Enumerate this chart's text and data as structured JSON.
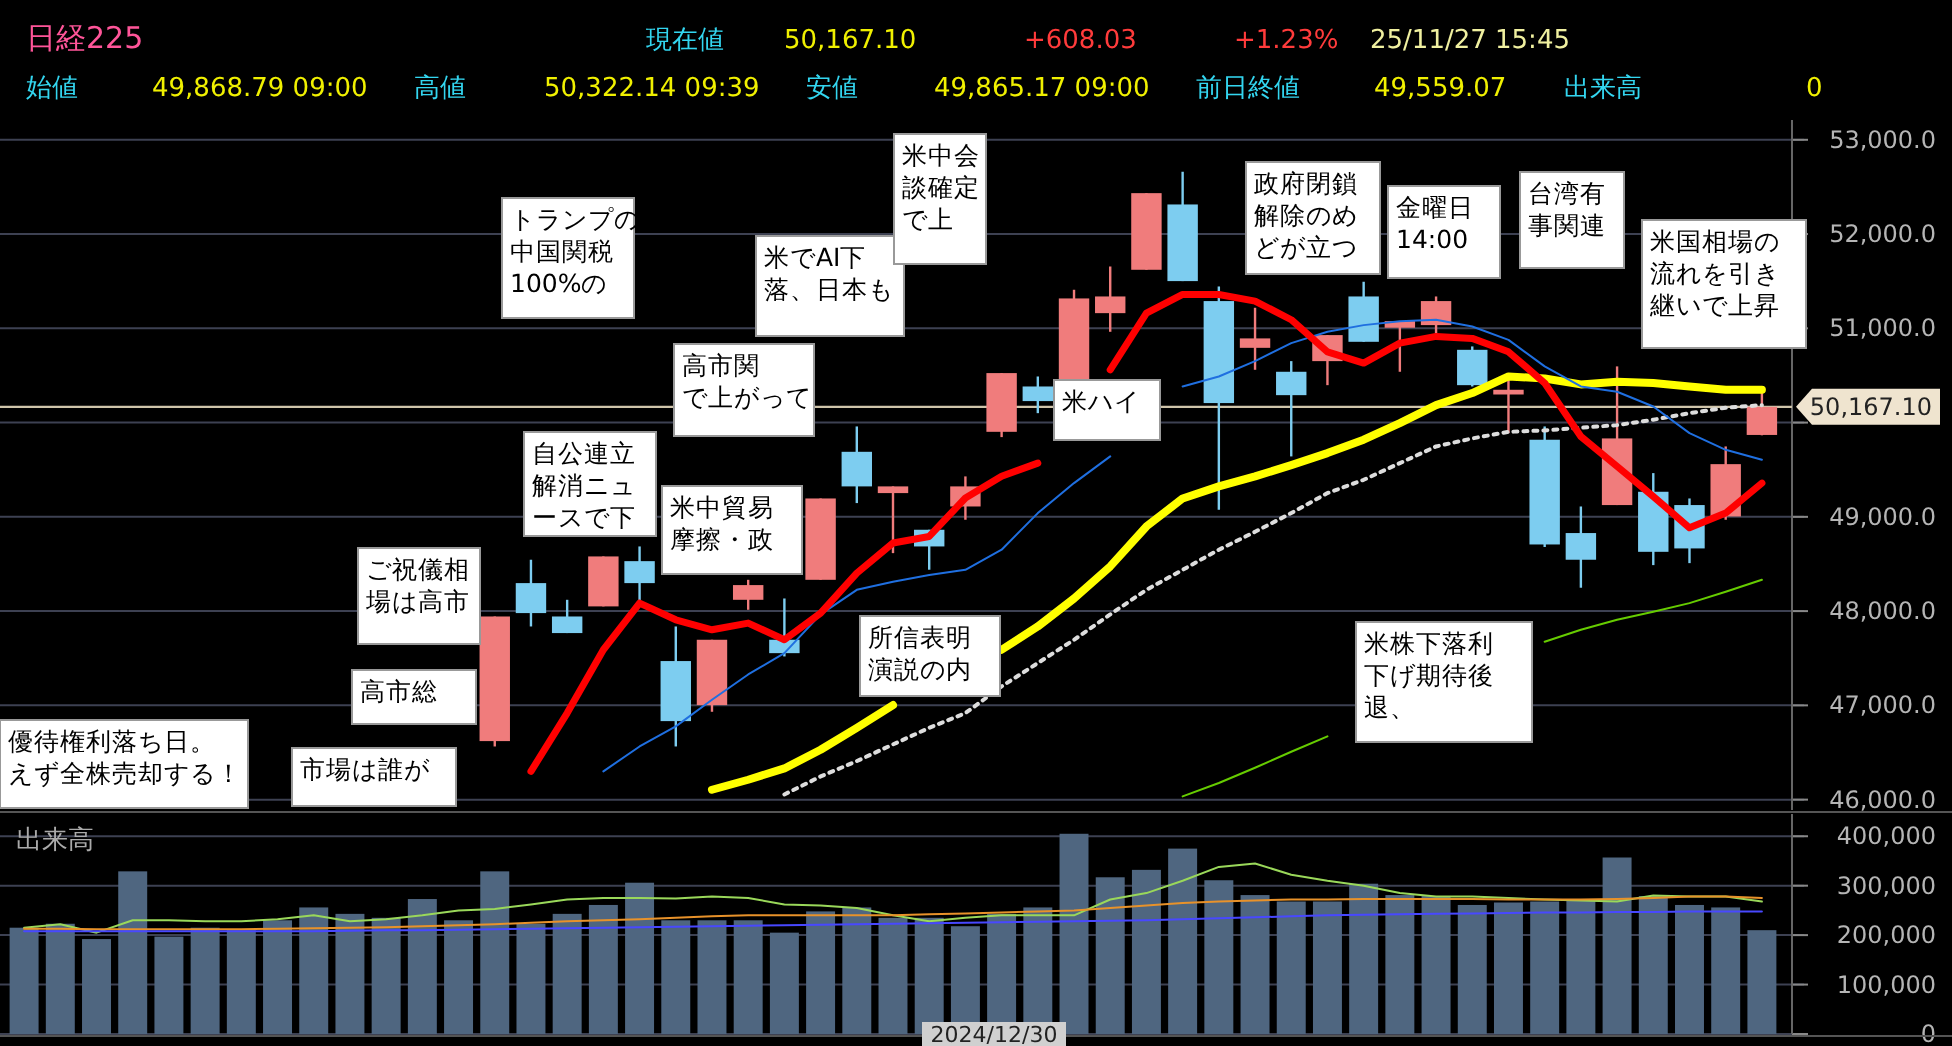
{
  "chart_data": [
    {
      "type": "candlestick",
      "title": "日経225",
      "categories": [
        null,
        null,
        null,
        null,
        null,
        null,
        null,
        null,
        null,
        null,
        null,
        null,
        null,
        null,
        null,
        null,
        null,
        null,
        null,
        null,
        null,
        null,
        null,
        null,
        null,
        null,
        null,
        null,
        null,
        null,
        null,
        null,
        null,
        null,
        null,
        null,
        null,
        null,
        null,
        null,
        null,
        null,
        null,
        null,
        null,
        null,
        null,
        null,
        null
      ],
      "ohlc": [
        null,
        null,
        null,
        null,
        null,
        null,
        null,
        null,
        null,
        null,
        null,
        null,
        null,
        [
          46621,
          47943,
          46564,
          47943
        ],
        [
          48297,
          48545,
          47837,
          47979
        ],
        [
          47943,
          48120,
          47767,
          47767
        ],
        [
          48050,
          48580,
          48050,
          48580
        ],
        [
          48530,
          48686,
          48085,
          48297
        ],
        [
          47470,
          47837,
          46564,
          46833
        ],
        [
          47003,
          47696,
          46932,
          47696
        ],
        [
          48120,
          48332,
          48014,
          48276
        ],
        [
          47696,
          48134,
          47519,
          47554
        ],
        [
          48332,
          49195,
          48332,
          49195
        ],
        [
          49690,
          49959,
          49146,
          49323
        ],
        [
          49252,
          49323,
          48615,
          49323
        ],
        [
          48863,
          48863,
          48439,
          48686
        ],
        [
          49110,
          49429,
          48969,
          49323
        ],
        [
          49902,
          50525,
          49846,
          50525
        ],
        [
          50383,
          50489,
          50100,
          50228
        ],
        [
          50454,
          51409,
          50454,
          51317
        ],
        [
          51161,
          51656,
          50963,
          51338
        ],
        [
          51621,
          52434,
          51621,
          52434
        ],
        [
          52314,
          52661,
          51501,
          51501
        ],
        [
          51289,
          51444,
          49075,
          50207
        ],
        [
          50793,
          51218,
          50560,
          50893
        ],
        [
          50539,
          50652,
          49641,
          50291
        ],
        [
          50652,
          50928,
          50397,
          50928
        ],
        [
          51338,
          51494,
          50857,
          50857
        ],
        [
          51006,
          51076,
          50539,
          51076
        ],
        [
          51034,
          51338,
          50949,
          51289
        ],
        [
          50772,
          50808,
          50383,
          50397
        ],
        [
          50298,
          50454,
          49888,
          50348
        ],
        [
          49818,
          49959,
          48680,
          48707
        ],
        [
          48828,
          49110,
          48248,
          48545
        ],
        [
          49125,
          50596,
          49125,
          49832
        ],
        [
          49266,
          49464,
          48488,
          48629
        ],
        [
          49125,
          49195,
          48509,
          48665
        ],
        [
          49004,
          49747,
          48969,
          49559.07
        ],
        [
          49868.79,
          50322.14,
          49865.17,
          50167.1
        ]
      ],
      "colors": [
        null,
        null,
        null,
        null,
        null,
        null,
        null,
        null,
        null,
        null,
        null,
        null,
        null,
        "#f07c7c",
        "#7dcdf0",
        "#7dcdf0",
        "#f07c7c",
        "#7dcdf0",
        "#7dcdf0",
        "#f07c7c",
        "#f07c7c",
        "#7dcdf0",
        "#f07c7c",
        "#7dcdf0",
        "#f07c7c",
        "#7dcdf0",
        "#f07c7c",
        "#f07c7c",
        "#7dcdf0",
        "#f07c7c",
        "#f07c7c",
        "#f07c7c",
        "#7dcdf0",
        "#7dcdf0",
        "#f07c7c",
        "#7dcdf0",
        "#f07c7c",
        "#7dcdf0",
        "#f07c7c",
        "#f07c7c",
        "#7dcdf0",
        "#f07c7c",
        "#7dcdf0",
        "#7dcdf0",
        "#f07c7c",
        "#7dcdf0",
        "#7dcdf0",
        "#f07c7c",
        "#f07c7c"
      ],
      "series": [
        {
          "type": "line",
          "color": "#ffff00",
          "line_style": "solid",
          "values": [
            null,
            null,
            null,
            null,
            null,
            null,
            null,
            null,
            null,
            null,
            null,
            null,
            null,
            null,
            null,
            null,
            null,
            null,
            null,
            46105,
            46211,
            46331,
            46529,
            46762,
            47003,
            null,
            null,
            47590,
            47837,
            48134,
            48474,
            48898,
            49195,
            49323,
            49429,
            49549,
            49676,
            49818,
            49995,
            50185,
            50313,
            50489,
            50468,
            50405,
            50433,
            50419,
            50383,
            50348,
            50348
          ]
        },
        {
          "type": "line",
          "color": "#dddddd",
          "line_style": "dotted",
          "values": [
            null,
            null,
            null,
            null,
            null,
            null,
            null,
            null,
            null,
            null,
            null,
            null,
            null,
            null,
            null,
            null,
            null,
            null,
            null,
            null,
            null,
            46055,
            46246,
            46409,
            46586,
            46762,
            46918,
            47201,
            47449,
            47696,
            47965,
            48226,
            48438,
            48651,
            48842,
            49040,
            49252,
            49393,
            49570,
            49747,
            49832,
            49902,
            49917,
            49945,
            49973,
            50030,
            50100,
            50157,
            50185
          ]
        },
        {
          "type": "line",
          "color": "#66cc00",
          "line_style": "solid",
          "values": [
            null,
            null,
            null,
            null,
            null,
            null,
            null,
            null,
            null,
            null,
            null,
            null,
            null,
            null,
            null,
            null,
            null,
            null,
            null,
            null,
            null,
            null,
            null,
            null,
            null,
            null,
            null,
            null,
            null,
            null,
            null,
            null,
            46034,
            46176,
            46338,
            46508,
            46671,
            null,
            null,
            null,
            null,
            null,
            47675,
            47802,
            47908,
            47993,
            48085,
            48205,
            48332
          ]
        },
        {
          "type": "line",
          "color": "#1f6fe0",
          "line_style": "solid",
          "values": [
            null,
            null,
            null,
            null,
            null,
            null,
            null,
            null,
            null,
            null,
            null,
            null,
            null,
            null,
            null,
            null,
            46300,
            46564,
            46777,
            47060,
            47328,
            47554,
            47965,
            48226,
            48311,
            48382,
            48438,
            48651,
            49040,
            49358,
            49641,
            null,
            50383,
            50489,
            50652,
            50843,
            50963,
            51034,
            51076,
            51091,
            51020,
            50878,
            50596,
            50383,
            50327,
            50171,
            49888,
            49711,
            49605
          ]
        },
        {
          "type": "line",
          "color": "#ff0000",
          "line_style": "solid",
          "values": [
            null,
            null,
            null,
            null,
            null,
            null,
            null,
            null,
            null,
            null,
            null,
            null,
            null,
            null,
            46300,
            46918,
            47590,
            48085,
            47908,
            47802,
            47873,
            47696,
            47979,
            48403,
            48722,
            48792,
            49200,
            49430,
            49570,
            null,
            50560,
            51161,
            51359,
            51359,
            51289,
            51091,
            50751,
            50631,
            50843,
            50914,
            50893,
            50751,
            50419,
            49853,
            49535,
            49216,
            48884,
            49040,
            49358
          ]
        }
      ],
      "ylim": [
        45890,
        53210
      ],
      "yticks": [
        {
          "value": 46000,
          "label": "46,000.0"
        },
        {
          "value": 47000,
          "label": "47,000.0"
        },
        {
          "value": 48000,
          "label": "48,000.0"
        },
        {
          "value": 49000,
          "label": "49,000.0"
        },
        {
          "value": 50000,
          "label": null
        },
        {
          "value": 51000,
          "label": "51,000.0"
        },
        {
          "value": 52000,
          "label": "52,000.0"
        },
        {
          "value": 53000,
          "label": "53,000.0"
        }
      ],
      "grid": "y",
      "ref_lines": [
        {
          "axis": "y",
          "value": 50167.1,
          "label": "50,167.10",
          "color": "#cfc4aa"
        }
      ],
      "annotations": [
        "現在値",
        "50,167.10",
        "+608.03",
        "+1.23%",
        "25/11/27 15:45",
        "始値",
        "49,868.79 09:00",
        "高値",
        "50,322.14 09:39",
        "安値",
        "49,865.17 09:00",
        "前日終値",
        "49,559.07",
        "出来高",
        "0",
        "優待権利落ち日。えず全株売却する！",
        "市場は誰が",
        "高市総",
        "ご祝儀相場は高市",
        "トランプの中国関税100%の",
        "自公連立解消ニュースで下",
        "高市関で上がって",
        "米でAI下落、日本も",
        "米中貿易摩擦・政",
        "米中会談確定で上",
        "所信表明演説の内",
        "米ハイ",
        "政府閉鎖解除のめどが立つ",
        "金曜日14:00",
        "台湾有事関連",
        "米国相場の流れを引き継いで上昇",
        "米株下落利下げ期待後退、"
      ]
    },
    {
      "type": "bar",
      "title": "出来高",
      "categories": [
        null,
        null,
        null,
        null,
        null,
        null,
        null,
        null,
        null,
        null,
        null,
        null,
        null,
        null,
        null,
        null,
        null,
        null,
        null,
        null,
        null,
        null,
        null,
        null,
        null,
        null,
        null,
        null,
        null,
        null,
        null,
        null,
        null,
        null,
        null,
        null,
        null,
        null,
        null,
        null,
        null,
        null,
        null,
        null,
        null,
        null,
        null,
        null,
        null
      ],
      "series": [
        {
          "type": "bar",
          "color": "#4f6680",
          "values": [
            215000,
            223000,
            192000,
            329000,
            197000,
            215000,
            210000,
            230000,
            256000,
            243000,
            235000,
            273000,
            230000,
            329000,
            223000,
            243000,
            261000,
            306000,
            230000,
            230000,
            230000,
            205000,
            248000,
            256000,
            235000,
            235000,
            218000,
            243000,
            256000,
            405000,
            317000,
            332000,
            375000,
            311000,
            281000,
            268000,
            268000,
            304000,
            281000,
            279000,
            261000,
            266000,
            268000,
            273000,
            357000,
            279000,
            261000,
            256000,
            210000
          ]
        },
        {
          "type": "line",
          "color": "#9ad85a",
          "values": [
            215000,
            222000,
            205000,
            230000,
            230000,
            228000,
            228000,
            232000,
            240000,
            228000,
            232000,
            240000,
            250000,
            253000,
            262000,
            272000,
            275000,
            275000,
            274000,
            278000,
            275000,
            262000,
            260000,
            255000,
            240000,
            228000,
            235000,
            240000,
            240000,
            240000,
            272000,
            285000,
            310000,
            338000,
            345000,
            322000,
            310000,
            300000,
            285000,
            278000,
            278000,
            275000,
            272000,
            270000,
            268000,
            280000,
            278000,
            278000,
            268000
          ]
        },
        {
          "type": "line",
          "color": "#e8922a",
          "values": [
            213000,
            213000,
            212000,
            212000,
            212000,
            212000,
            212000,
            213000,
            214000,
            215000,
            216000,
            218000,
            220000,
            222000,
            225000,
            228000,
            230000,
            232000,
            235000,
            238000,
            240000,
            240000,
            240000,
            240000,
            240000,
            242000,
            244000,
            246000,
            248000,
            250000,
            255000,
            260000,
            265000,
            268000,
            270000,
            272000,
            272000,
            273000,
            273000,
            273000,
            273000,
            272000,
            272000,
            272000,
            273000,
            275000,
            278000,
            278000,
            275000
          ]
        },
        {
          "type": "line",
          "color": "#4848ff",
          "values": [
            208000,
            208000,
            208000,
            208000,
            208000,
            208000,
            208000,
            208000,
            208000,
            209000,
            210000,
            210000,
            211000,
            212000,
            213000,
            214000,
            215000,
            216000,
            217000,
            218000,
            219000,
            220000,
            221000,
            222000,
            223000,
            224000,
            225000,
            226000,
            227000,
            228000,
            229000,
            230000,
            232000,
            234000,
            236000,
            238000,
            240000,
            241000,
            242000,
            243000,
            244000,
            245000,
            246000,
            246000,
            247000,
            247000,
            248000,
            248000,
            248000
          ]
        }
      ],
      "ylim": [
        0,
        445000
      ],
      "yticks": [
        {
          "value": 0,
          "label": "0"
        },
        {
          "value": 100000,
          "label": "100,000"
        },
        {
          "value": 200000,
          "label": "200,000"
        },
        {
          "value": 300000,
          "label": "300,000"
        },
        {
          "value": 400000,
          "label": "400,000"
        }
      ],
      "grid": "y",
      "annotations": [
        "2024/12/30"
      ]
    }
  ]
}
